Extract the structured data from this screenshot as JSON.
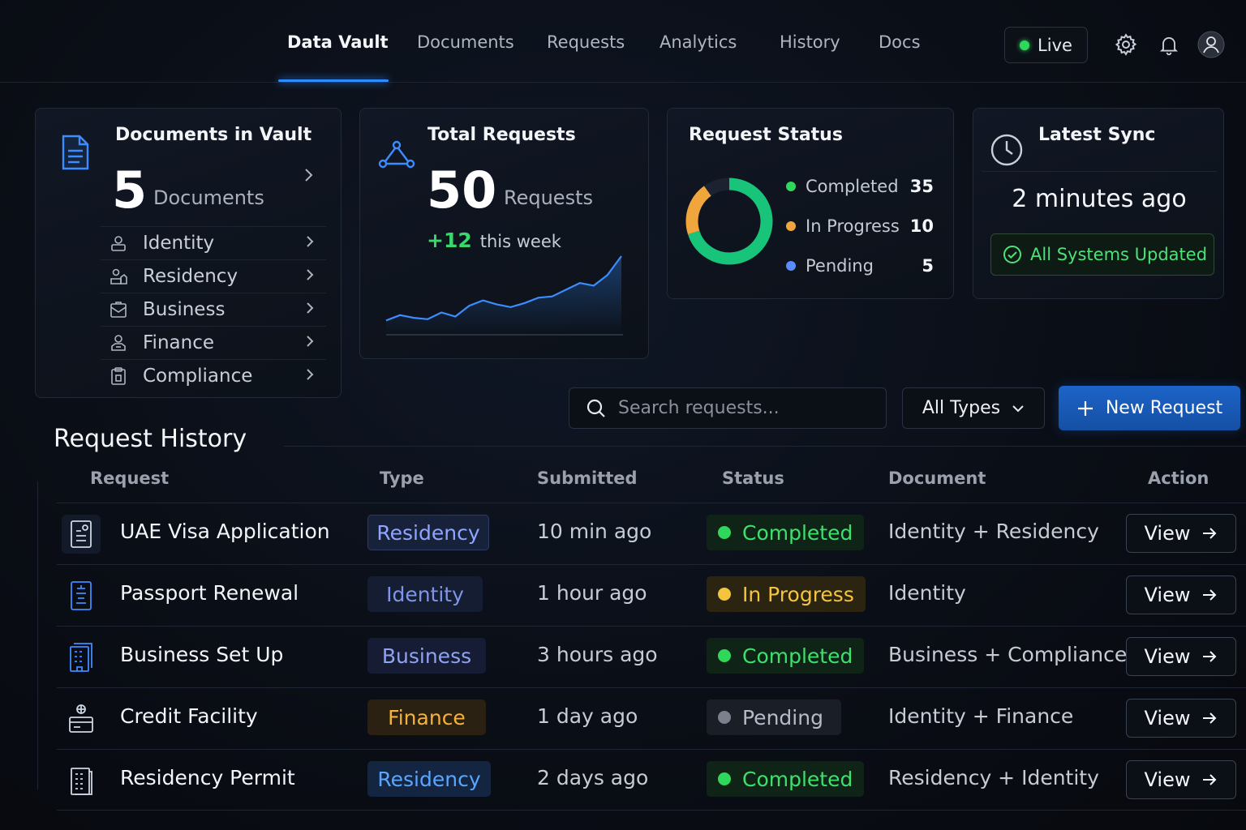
{
  "nav": {
    "items": [
      "Data Vault",
      "Documents",
      "Requests",
      "Analytics",
      "History",
      "Docs"
    ],
    "active": "Data Vault",
    "live_label": "Live"
  },
  "icons": {
    "settings": "gear-icon",
    "notifications": "bell-icon",
    "profile": "user-avatar-icon"
  },
  "colors": {
    "accent": "#2f8cff",
    "completed": "#2fd85a",
    "in_progress": "#f0a63c",
    "pending": "#5b8cff",
    "donut_completed": "#18c47a"
  },
  "vault_card": {
    "title": "Documents in Vault",
    "count": "5",
    "unit": "Documents",
    "categories": [
      {
        "label": "Identity",
        "icon": "id-card-icon"
      },
      {
        "label": "Residency",
        "icon": "home-id-icon"
      },
      {
        "label": "Business",
        "icon": "briefcase-icon"
      },
      {
        "label": "Finance",
        "icon": "finance-icon"
      },
      {
        "label": "Compliance",
        "icon": "clipboard-icon"
      }
    ]
  },
  "requests_card": {
    "title": "Total Requests",
    "count": "50",
    "unit": "Requests",
    "delta": "+12",
    "delta_label": "this week",
    "sparkline": [
      10,
      14,
      12,
      11,
      16,
      13,
      21,
      25,
      22,
      20,
      23,
      27,
      28,
      33,
      38,
      36,
      44,
      58
    ]
  },
  "status_card": {
    "title": "Request Status",
    "items": [
      {
        "label": "Completed",
        "count": "35",
        "value": 35
      },
      {
        "label": "In Progress",
        "count": "10",
        "value": 10
      },
      {
        "label": "Pending",
        "count": "5",
        "value": 5
      }
    ]
  },
  "sync_card": {
    "title": "Latest Sync",
    "value": "2 minutes ago",
    "badge": "All Systems Updated"
  },
  "toolbar": {
    "search_placeholder": "Search requests...",
    "type_filter": "All Types",
    "new_request": "New Request"
  },
  "history": {
    "title": "Request History",
    "columns": [
      "Request",
      "Type",
      "Submitted",
      "Status",
      "Document",
      "Action"
    ],
    "rows": [
      {
        "request": "UAE Visa Application",
        "type": "Residency",
        "submitted": "10 min ago",
        "status": "Completed",
        "document": "Identity + Residency",
        "action": "View",
        "icon": "visa-document-icon"
      },
      {
        "request": "Passport Renewal",
        "type": "Identity",
        "submitted": "1 hour ago",
        "status": "In Progress",
        "document": "Identity",
        "action": "View",
        "icon": "passport-icon"
      },
      {
        "request": "Business Set Up",
        "type": "Business",
        "submitted": "3 hours ago",
        "status": "Completed",
        "document": "Business + Compliance",
        "action": "View",
        "icon": "building-icon"
      },
      {
        "request": "Credit Facility",
        "type": "Finance",
        "submitted": "1 day ago",
        "status": "Pending",
        "document": "Identity + Finance",
        "action": "View",
        "icon": "credit-icon"
      },
      {
        "request": "Residency Permit",
        "type": "Residency",
        "submitted": "2 days ago",
        "status": "Completed",
        "document": "Residency + Identity",
        "action": "View",
        "icon": "permit-icon"
      }
    ]
  }
}
